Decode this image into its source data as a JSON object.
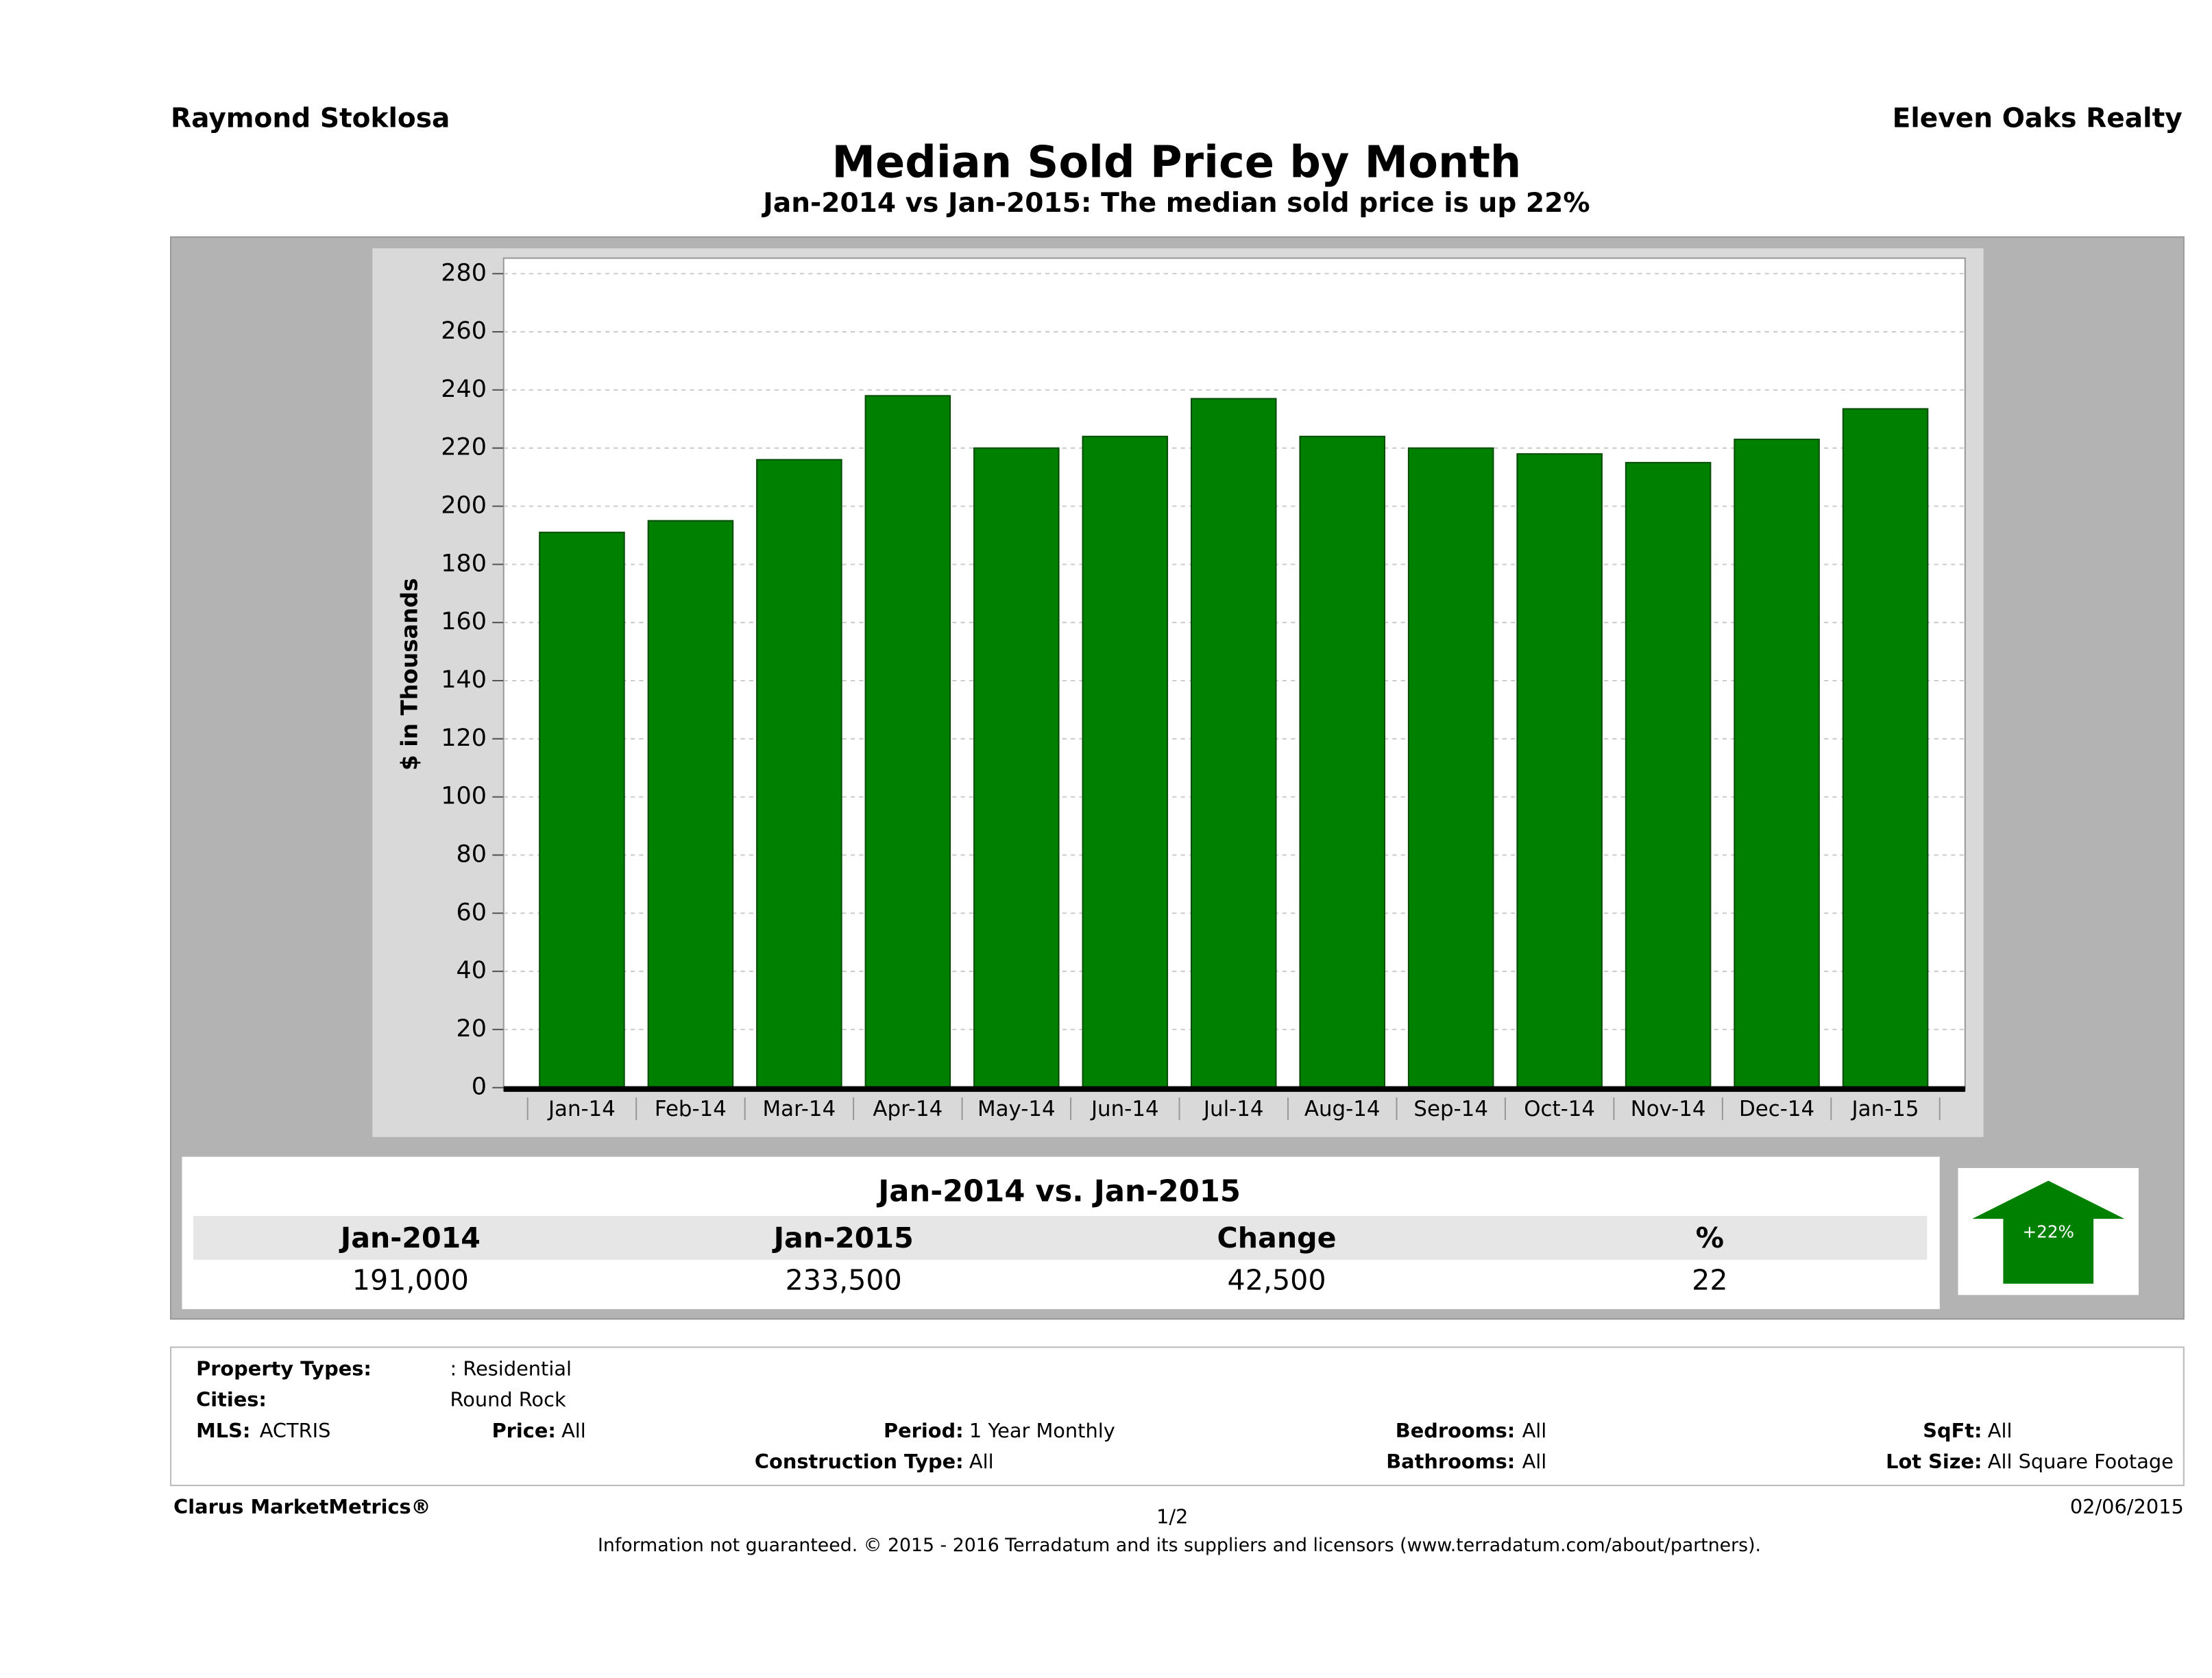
{
  "header": {
    "left": "Raymond Stoklosa",
    "right": "Eleven Oaks Realty"
  },
  "chart_data": {
    "type": "bar",
    "title": "Median Sold Price by Month",
    "subtitle": "Jan-2014 vs Jan-2015: The median sold price is up 22%",
    "y_label": "$ in Thousands",
    "categories": [
      "Jan-14",
      "Feb-14",
      "Mar-14",
      "Apr-14",
      "May-14",
      "Jun-14",
      "Jul-14",
      "Aug-14",
      "Sep-14",
      "Oct-14",
      "Nov-14",
      "Dec-14",
      "Jan-15"
    ],
    "values": [
      191,
      195,
      216,
      238,
      220,
      224,
      237,
      224,
      220,
      218,
      215,
      223,
      233.5
    ],
    "color": "#008000",
    "ylim": [
      0,
      280
    ],
    "yticks": [
      0,
      20,
      40,
      60,
      80,
      100,
      120,
      140,
      160,
      180,
      200,
      220,
      240,
      260,
      280
    ],
    "grid": true
  },
  "comparison": {
    "title": "Jan-2014 vs. Jan-2015",
    "headers": [
      "Jan-2014",
      "Jan-2015",
      "Change",
      "%"
    ],
    "values": [
      "191,000",
      "233,500",
      "42,500",
      "22"
    ],
    "badge": "+22%"
  },
  "filters": [
    {
      "label": "Property Types:",
      "value": ": Residential"
    },
    {
      "label": "Cities:",
      "value": "Round Rock"
    },
    {
      "label": "MLS:",
      "value": "ACTRIS"
    },
    {
      "label": "Price:",
      "value": "All"
    },
    {
      "label": "Period:",
      "value": "1 Year Monthly"
    },
    {
      "label": "Bedrooms:",
      "value": "All"
    },
    {
      "label": "SqFt:",
      "value": "All"
    },
    {
      "label": "Construction Type:",
      "value": "All"
    },
    {
      "label": "Bathrooms:",
      "value": "All"
    },
    {
      "label": "Lot Size:",
      "value": "All Square Footage"
    }
  ],
  "footer": {
    "brand": "Clarus MarketMetrics®",
    "page": "1/2",
    "date": "02/06/2015",
    "disclaimer": "Information not guaranteed. © 2015 - 2016 Terradatum and its suppliers and licensors (www.terradatum.com/about/partners)."
  }
}
